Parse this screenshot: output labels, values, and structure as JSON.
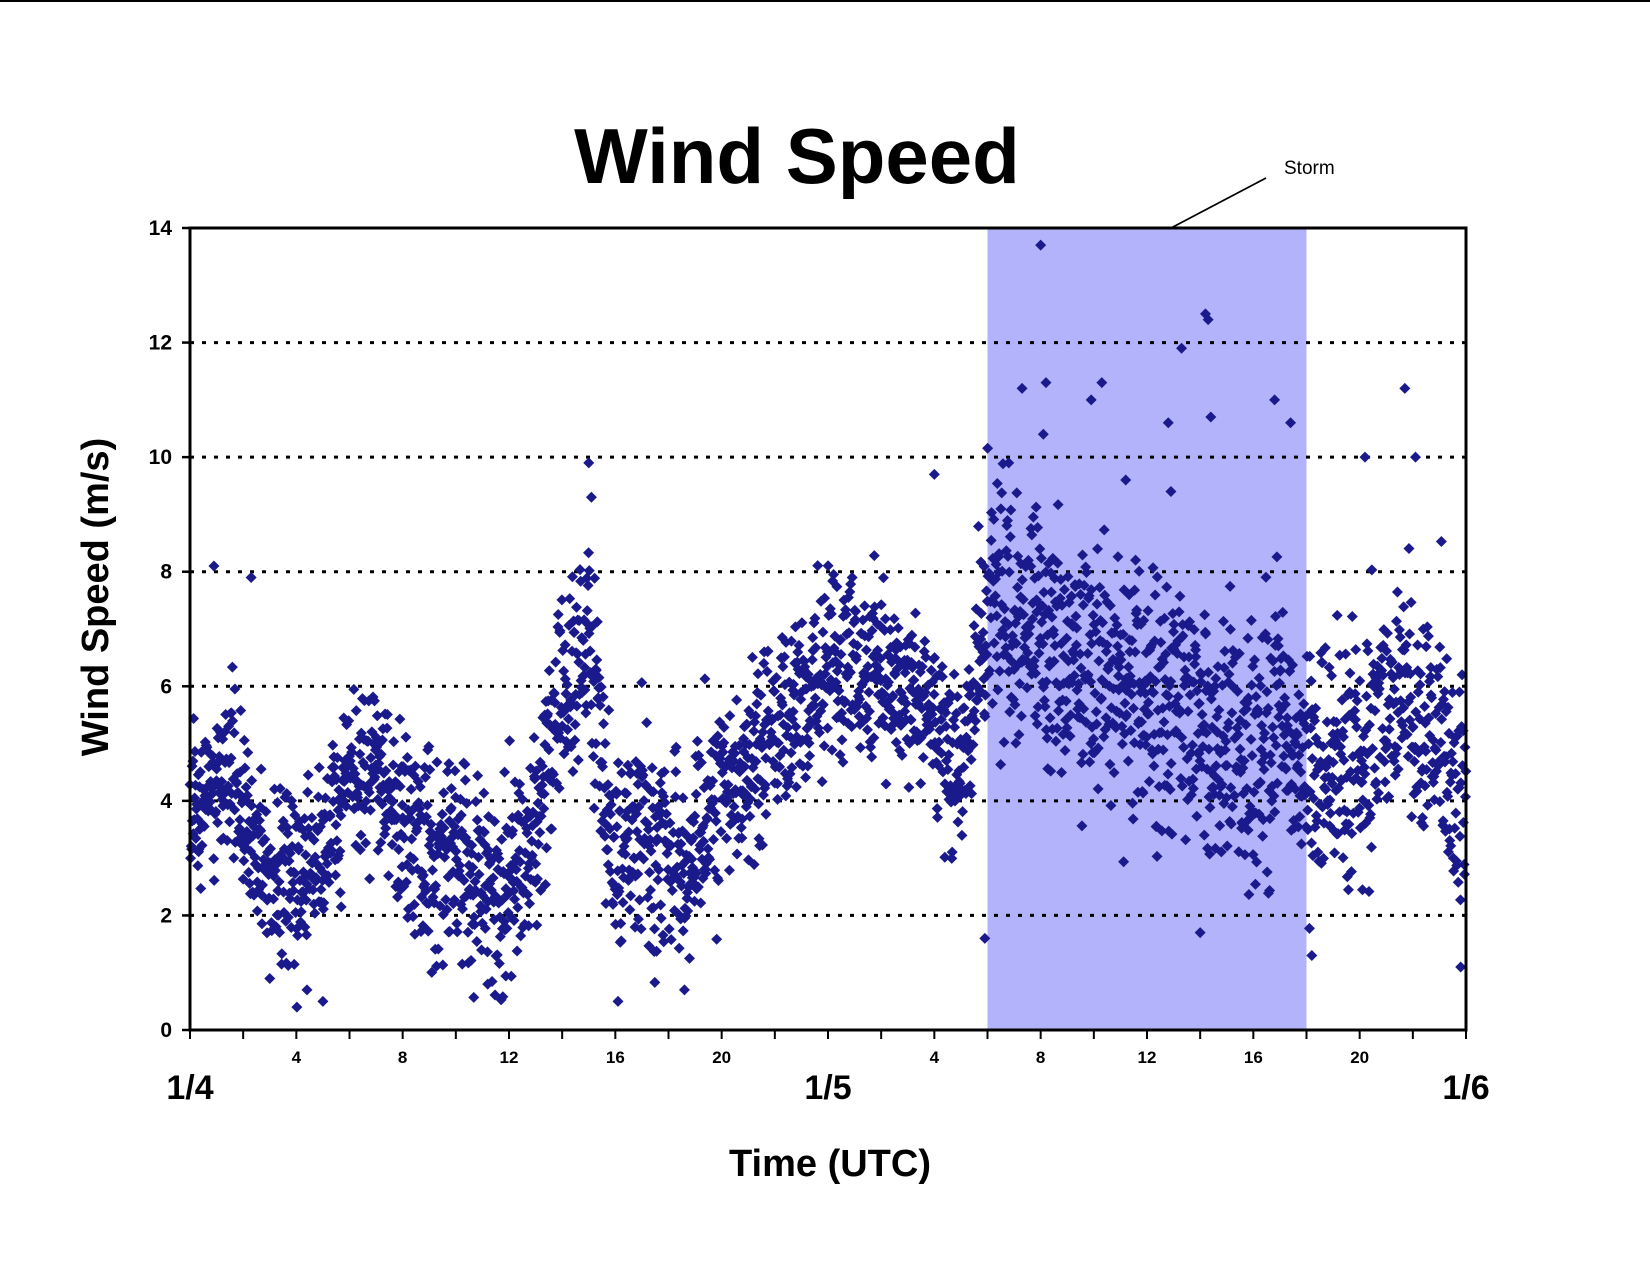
{
  "chart_data": {
    "type": "scatter",
    "title": "Wind Speed",
    "xlabel": "Time (UTC)",
    "ylabel": "Wind Speed (m/s)",
    "x_units": "hours since 1/4 00:00 UTC",
    "xlim": [
      0,
      48
    ],
    "ylim": [
      0,
      14
    ],
    "y_ticks": [
      0,
      2,
      4,
      6,
      8,
      10,
      12,
      14
    ],
    "hour_ticks": [
      {
        "x": 4,
        "label": "4"
      },
      {
        "x": 8,
        "label": "8"
      },
      {
        "x": 12,
        "label": "12"
      },
      {
        "x": 16,
        "label": "16"
      },
      {
        "x": 20,
        "label": "20"
      },
      {
        "x": 28,
        "label": "4"
      },
      {
        "x": 32,
        "label": "8"
      },
      {
        "x": 36,
        "label": "12"
      },
      {
        "x": 40,
        "label": "16"
      },
      {
        "x": 44,
        "label": "20"
      }
    ],
    "date_ticks": [
      {
        "x": 0,
        "label": "1/4"
      },
      {
        "x": 24,
        "label": "1/5"
      },
      {
        "x": 48,
        "label": "1/6"
      }
    ],
    "grid": "horizontal dotted",
    "marker": "diamond",
    "marker_color": "#1a1a8c",
    "storm": {
      "label": "Storm",
      "x_start": 30,
      "x_end": 42,
      "color": "#b3b3fb"
    },
    "trend": [
      [
        0,
        3.6
      ],
      [
        1,
        4.5
      ],
      [
        2,
        3.8
      ],
      [
        3,
        2.8
      ],
      [
        4,
        2.5
      ],
      [
        5,
        3.2
      ],
      [
        6,
        4.6
      ],
      [
        7,
        4.6
      ],
      [
        8,
        3.6
      ],
      [
        9,
        3.0
      ],
      [
        10,
        3.0
      ],
      [
        11,
        2.6
      ],
      [
        12,
        2.5
      ],
      [
        13,
        3.8
      ],
      [
        14,
        6.0
      ],
      [
        15,
        6.8
      ],
      [
        16,
        2.8
      ],
      [
        17,
        3.6
      ],
      [
        18,
        2.8
      ],
      [
        19,
        3.2
      ],
      [
        20,
        4.0
      ],
      [
        21,
        4.6
      ],
      [
        22,
        5.0
      ],
      [
        23,
        5.8
      ],
      [
        24,
        6.2
      ],
      [
        25,
        6.4
      ],
      [
        26,
        6.2
      ],
      [
        27,
        6.0
      ],
      [
        28,
        5.4
      ],
      [
        29,
        4.4
      ],
      [
        30,
        7.6
      ],
      [
        31,
        7.2
      ],
      [
        32,
        6.8
      ],
      [
        33,
        6.4
      ],
      [
        34,
        6.2
      ],
      [
        35,
        6.2
      ],
      [
        36,
        5.8
      ],
      [
        37,
        5.6
      ],
      [
        38,
        5.2
      ],
      [
        39,
        5.0
      ],
      [
        40,
        5.0
      ],
      [
        41,
        5.4
      ],
      [
        42,
        4.6
      ],
      [
        43,
        4.4
      ],
      [
        44,
        4.8
      ],
      [
        45,
        5.6
      ],
      [
        46,
        5.6
      ],
      [
        47,
        5.4
      ],
      [
        48,
        4.0
      ]
    ],
    "spread": [
      [
        0,
        1.0
      ],
      [
        15,
        1.3
      ],
      [
        16,
        1.3
      ],
      [
        29,
        1.0
      ],
      [
        30,
        1.6
      ],
      [
        41,
        1.6
      ],
      [
        42,
        1.3
      ],
      [
        48,
        1.6
      ]
    ],
    "points_per_hour": 60,
    "notable_points": [
      [
        0.9,
        8.1
      ],
      [
        2.3,
        7.9
      ],
      [
        15.0,
        9.9
      ],
      [
        15.1,
        9.3
      ],
      [
        21.6,
        6.6
      ],
      [
        28.0,
        9.7
      ],
      [
        31.3,
        11.2
      ],
      [
        32.0,
        13.7
      ],
      [
        32.2,
        11.3
      ],
      [
        33.9,
        11.0
      ],
      [
        34.3,
        11.3
      ],
      [
        36.8,
        10.6
      ],
      [
        37.3,
        11.9
      ],
      [
        38.2,
        12.5
      ],
      [
        38.3,
        12.4
      ],
      [
        38.4,
        10.7
      ],
      [
        40.8,
        11.0
      ],
      [
        41.4,
        10.6
      ],
      [
        45.7,
        11.2
      ],
      [
        44.2,
        10.0
      ],
      [
        46.1,
        10.0
      ],
      [
        30.8,
        9.9
      ],
      [
        32.1,
        10.4
      ],
      [
        35.2,
        9.6
      ],
      [
        36.9,
        9.4
      ],
      [
        4.4,
        0.7
      ],
      [
        5.0,
        0.5
      ],
      [
        16.1,
        0.5
      ],
      [
        18.6,
        0.7
      ],
      [
        38.0,
        1.7
      ],
      [
        47.8,
        1.1
      ],
      [
        11.2,
        0.8
      ],
      [
        42.2,
        1.3
      ],
      [
        29.9,
        1.6
      ],
      [
        3.0,
        0.9
      ]
    ]
  }
}
